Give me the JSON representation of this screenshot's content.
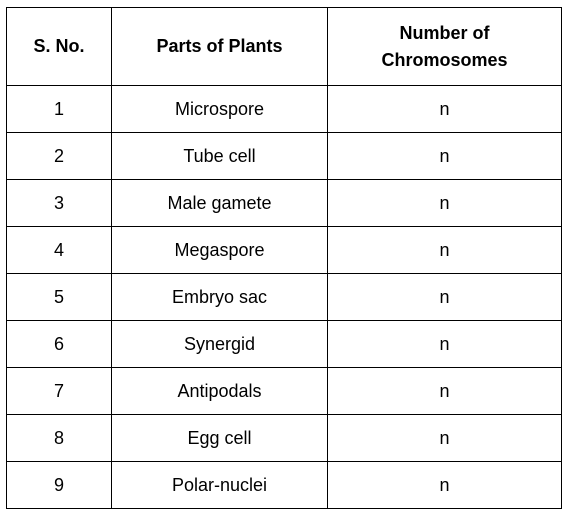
{
  "table": {
    "headers": {
      "sno": "S. No.",
      "part": "Parts of Plants",
      "chrom_line1": "Number of",
      "chrom_line2": "Chromosomes"
    },
    "rows": [
      {
        "sno": "1",
        "part": "Microspore",
        "chromosomes": "n"
      },
      {
        "sno": "2",
        "part": "Tube cell",
        "chromosomes": "n"
      },
      {
        "sno": "3",
        "part": "Male gamete",
        "chromosomes": "n"
      },
      {
        "sno": "4",
        "part": "Megaspore",
        "chromosomes": "n"
      },
      {
        "sno": "5",
        "part": "Embryo sac",
        "chromosomes": "n"
      },
      {
        "sno": "6",
        "part": "Synergid",
        "chromosomes": "n"
      },
      {
        "sno": "7",
        "part": "Antipodals",
        "chromosomes": "n"
      },
      {
        "sno": "8",
        "part": "Egg cell",
        "chromosomes": "n"
      },
      {
        "sno": "9",
        "part": "Polar-nuclei",
        "chromosomes": "n"
      }
    ]
  }
}
